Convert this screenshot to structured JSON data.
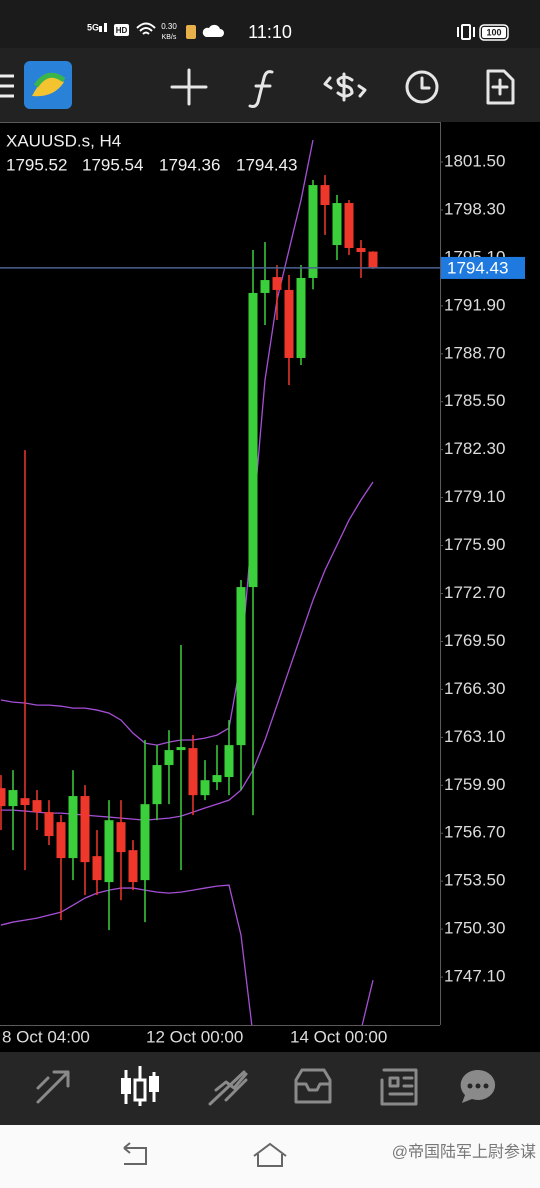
{
  "status_bar": {
    "network": "5G",
    "hd": "HD",
    "speed": "0.30",
    "speed_unit": "KB/s",
    "time": "11:10",
    "battery": "100"
  },
  "watermark": "@帝国陆军上尉参谋",
  "chart_data": {
    "type": "candlestick",
    "title": "XAUUSD.s, H4",
    "categories": [
      "8 Oct 04:00",
      null,
      null,
      null,
      null,
      null,
      null,
      null,
      null,
      null,
      null,
      null,
      "12 Oct 00:00",
      null,
      null,
      null,
      null,
      null,
      null,
      null,
      null,
      null,
      null,
      null,
      "14 Oct 00:00",
      null,
      null,
      null,
      null,
      null,
      null,
      null
    ],
    "open": [
      1759.71,
      1758.51,
      1759.04,
      1758.91,
      1758.11,
      1757.44,
      1755.04,
      1759.18,
      1755.17,
      1753.44,
      1757.44,
      1755.57,
      1753.57,
      1758.64,
      1761.25,
      1762.25,
      1762.38,
      1759.24,
      1760.11,
      1760.45,
      1762.58,
      1773.13,
      1792.76,
      1793.82,
      1792.96,
      1788.42,
      1793.76,
      1799.96,
      1795.96,
      1798.76,
      1795.76,
      1795.52
    ],
    "high": [
      1760.58,
      1760.91,
      1782.27,
      1759.58,
      1758.91,
      1757.91,
      1760.91,
      1759.91,
      1756.91,
      1758.91,
      1758.91,
      1756.24,
      1762.92,
      1762.58,
      1763.58,
      1769.26,
      1763.25,
      1761.58,
      1762.58,
      1764.25,
      1773.6,
      1795.63,
      1796.16,
      1794.62,
      1793.96,
      1794.62,
      1800.3,
      1800.63,
      1799.3,
      1798.96,
      1796.29,
      1795.54
    ],
    "low": [
      1756.91,
      1755.57,
      1754.24,
      1756.91,
      1755.91,
      1750.9,
      1753.57,
      1752.57,
      1752.57,
      1750.23,
      1752.23,
      1752.9,
      1750.77,
      1757.57,
      1758.64,
      1754.24,
      1757.91,
      1758.91,
      1759.58,
      1759.24,
      1759.58,
      1757.91,
      1790.62,
      1790.95,
      1786.61,
      1787.95,
      1793.0,
      1796.63,
      1794.96,
      1795.29,
      1793.76,
      1794.36
    ],
    "close": [
      1758.51,
      1759.58,
      1758.58,
      1758.11,
      1756.51,
      1755.04,
      1759.18,
      1754.77,
      1753.57,
      1757.57,
      1755.44,
      1753.44,
      1758.64,
      1761.25,
      1762.25,
      1762.45,
      1759.24,
      1760.24,
      1760.58,
      1762.58,
      1773.13,
      1792.76,
      1793.62,
      1792.96,
      1788.42,
      1793.76,
      1799.96,
      1798.63,
      1798.76,
      1795.76,
      1795.49,
      1794.43
    ],
    "up_color": "#3ccf3c",
    "down_color": "#f0372c",
    "overlays": [
      {
        "color": "#a64fd6",
        "values": [
          1765.59,
          1765.45,
          1765.39,
          1765.25,
          1765.25,
          1765.18,
          1765.05,
          1765.05,
          1764.92,
          1764.72,
          1764.25,
          1763.38,
          1762.71,
          1762.58,
          1762.78,
          1762.92,
          1762.92,
          1763.05,
          1763.25,
          1763.72,
          1768.26,
          1777.6,
          1786.95,
          1792.29,
          1795.63,
          1798.96,
          1802.97,
          null,
          null,
          null,
          null,
          null
        ]
      },
      {
        "color": "#a64fd6",
        "values": [
          1758.24,
          1758.24,
          1758.18,
          1758.11,
          1758.04,
          1758.04,
          1757.98,
          1757.91,
          1757.84,
          1757.78,
          1757.71,
          1757.64,
          1757.57,
          1757.64,
          1757.71,
          1757.84,
          1758.11,
          1758.38,
          1758.64,
          1758.91,
          1759.58,
          1760.91,
          1762.92,
          1765.25,
          1767.59,
          1769.92,
          1772.26,
          1774.26,
          1775.93,
          1777.6,
          1778.94,
          1780.14
        ]
      },
      {
        "color": "#a64fd6",
        "values": [
          1750.57,
          1750.77,
          1750.9,
          1751.03,
          1751.23,
          1751.43,
          1751.9,
          1752.37,
          1752.7,
          1752.9,
          1753.04,
          1753.04,
          1752.9,
          1752.77,
          1752.7,
          1752.77,
          1752.9,
          1753.04,
          1753.17,
          1753.24,
          1749.9,
          1743.22,
          null,
          null,
          null,
          null,
          null,
          null,
          null,
          null,
          1743.56,
          1746.89
        ]
      }
    ],
    "price_line_color": "#4a6390",
    "price_label_color": "#1f7ae0",
    "ylim": [
      1743.9,
      1804.17
    ],
    "yticks": [
      {
        "value": 1801.5,
        "label": "1801.50"
      },
      {
        "value": 1798.3,
        "label": "1798.30"
      },
      {
        "value": 1795.1,
        "label": "1795.10"
      },
      {
        "value": 1791.9,
        "label": "1791.90"
      },
      {
        "value": 1788.7,
        "label": "1788.70"
      },
      {
        "value": 1785.5,
        "label": "1785.50"
      },
      {
        "value": 1782.3,
        "label": "1782.30"
      },
      {
        "value": 1779.1,
        "label": "1779.10"
      },
      {
        "value": 1775.9,
        "label": "1775.90"
      },
      {
        "value": 1772.7,
        "label": "1772.70"
      },
      {
        "value": 1769.5,
        "label": "1769.50"
      },
      {
        "value": 1766.3,
        "label": "1766.30"
      },
      {
        "value": 1763.1,
        "label": "1763.10"
      },
      {
        "value": 1759.9,
        "label": "1759.90"
      },
      {
        "value": 1756.7,
        "label": "1756.70"
      },
      {
        "value": 1753.5,
        "label": "1753.50"
      },
      {
        "value": 1750.3,
        "label": "1750.30"
      },
      {
        "value": 1747.1,
        "label": "1747.10"
      }
    ],
    "grid": false
  }
}
